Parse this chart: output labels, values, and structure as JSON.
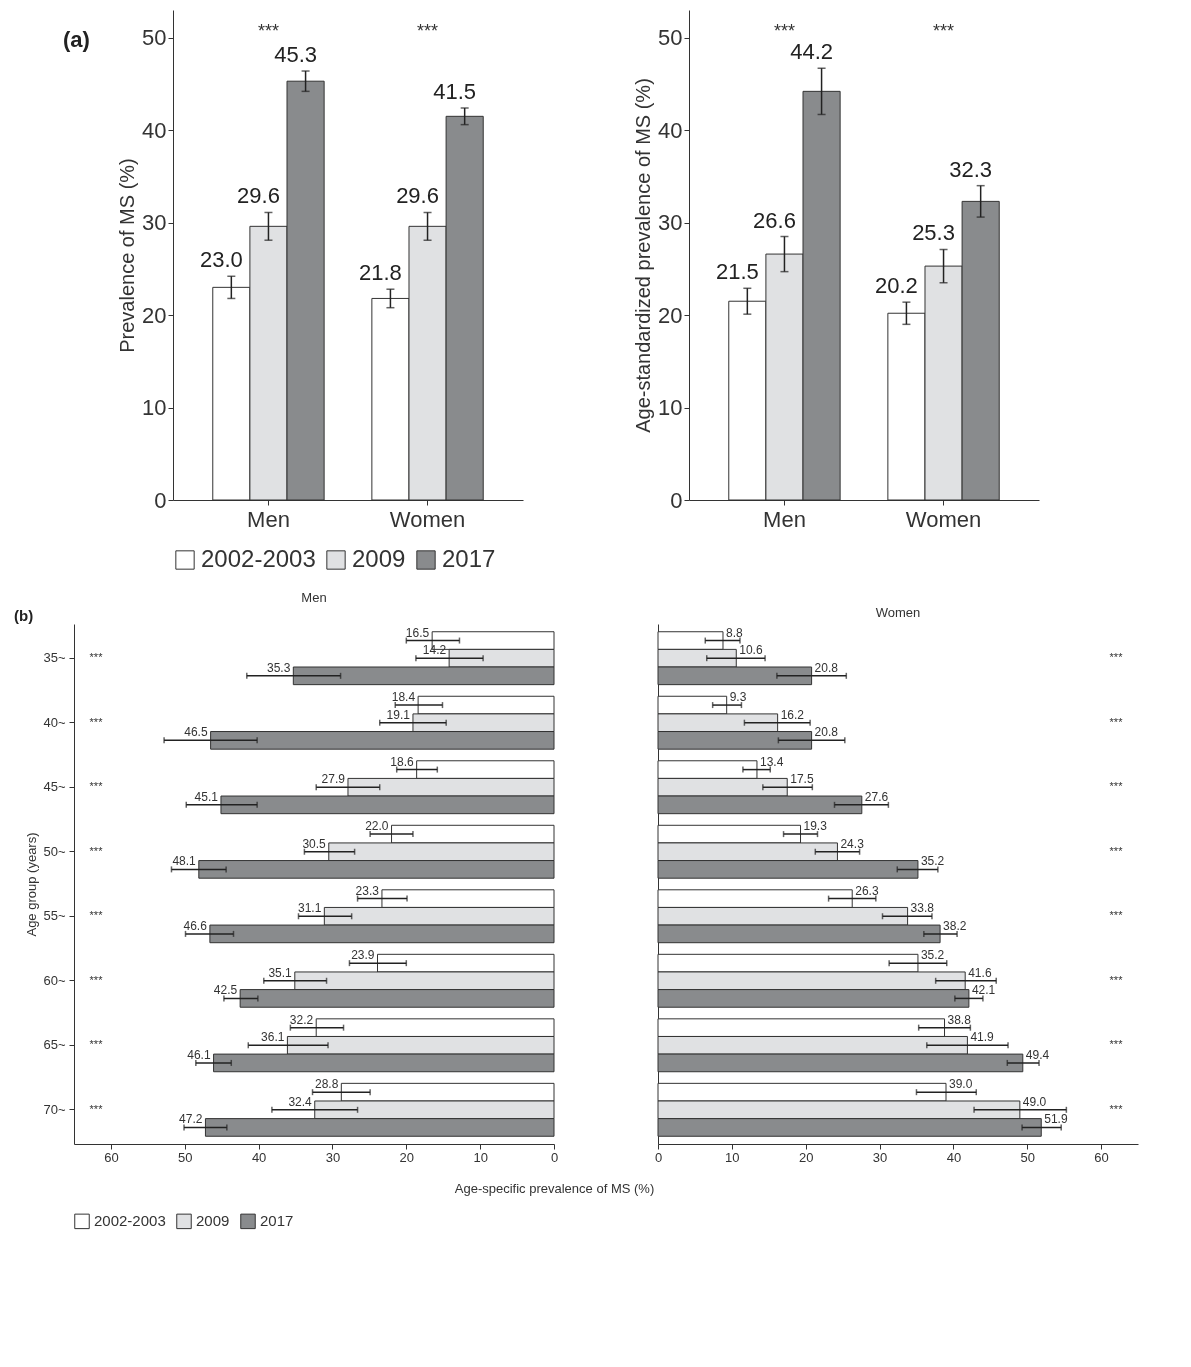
{
  "chart_data": [
    {
      "type": "bar",
      "categories": [
        "Men",
        "Women"
      ],
      "ylabel": "Prevalence of MS (%)",
      "ylim": [
        0,
        53
      ],
      "yticks": [
        0,
        10,
        20,
        30,
        40,
        50
      ],
      "legend": "bottom",
      "annotations": [
        "(a)",
        "***",
        "***"
      ],
      "series": [
        {
          "name": "2002-2003",
          "color": "#ffffff",
          "values": [
            23.0,
            21.8
          ],
          "value_labels": [
            "23.0",
            "21.8"
          ],
          "errors": [
            1.2,
            1.0
          ]
        },
        {
          "name": "2009",
          "color": "#e0e1e3",
          "values": [
            29.6,
            29.6
          ],
          "value_labels": [
            "29.6",
            "29.6"
          ],
          "errors": [
            1.5,
            1.5
          ]
        },
        {
          "name": "2017",
          "color": "#898b8d",
          "values": [
            45.3,
            41.5
          ],
          "value_labels": [
            "45.3",
            "41.5"
          ],
          "errors": [
            1.1,
            0.9
          ]
        }
      ]
    },
    {
      "type": "bar",
      "categories": [
        "Men",
        "Women"
      ],
      "ylabel": "Age-standardized prevalence of MS (%)",
      "ylim": [
        0,
        53
      ],
      "yticks": [
        0,
        10,
        20,
        30,
        40,
        50
      ],
      "legend": "bottom",
      "annotations": [
        "***",
        "***"
      ],
      "series": [
        {
          "name": "2002-2003",
          "color": "#ffffff",
          "values": [
            21.5,
            20.2
          ],
          "value_labels": [
            "21.5",
            "20.2"
          ],
          "errors": [
            1.4,
            1.2
          ]
        },
        {
          "name": "2009",
          "color": "#e0e1e3",
          "values": [
            26.6,
            25.3
          ],
          "value_labels": [
            "26.6",
            "25.3"
          ],
          "errors": [
            1.9,
            1.8
          ]
        },
        {
          "name": "2017",
          "color": "#898b8d",
          "values": [
            44.2,
            32.3
          ],
          "value_labels": [
            "44.2",
            "32.3"
          ],
          "errors": [
            2.5,
            1.7
          ]
        }
      ]
    },
    {
      "type": "bar",
      "orientation": "horizontal",
      "title": "Men",
      "categories": [
        "35~",
        "40~",
        "45~",
        "50~",
        "55~",
        "60~",
        "65~",
        "70~"
      ],
      "ylabel": "Age group (years)",
      "xlabel": "Age-specific prevalence of MS (%)",
      "xlim": [
        65,
        0
      ],
      "xticks": [
        60,
        50,
        40,
        30,
        20,
        10,
        0
      ],
      "legend": "bottom",
      "annotations": [
        "(b)",
        "***",
        "***",
        "***",
        "***",
        "***",
        "***",
        "***",
        "***"
      ],
      "series": [
        {
          "name": "2002-2003",
          "color": "#ffffff",
          "values": [
            16.5,
            18.4,
            18.6,
            22.0,
            23.3,
            23.9,
            32.2,
            28.8
          ],
          "value_labels": [
            "16.5",
            "18.4",
            "18.6",
            "22.0",
            "23.3",
            "23.9",
            "32.2",
            "28.8"
          ],
          "errors": [
            [
              12.8,
              20.0
            ],
            [
              15.1,
              21.5
            ],
            [
              15.8,
              21.3
            ],
            [
              19.1,
              24.9
            ],
            [
              19.9,
              26.6
            ],
            [
              20.0,
              27.7
            ],
            [
              28.5,
              35.7
            ],
            [
              24.9,
              32.7
            ]
          ]
        },
        {
          "name": "2009",
          "color": "#e0e1e3",
          "values": [
            14.2,
            19.1,
            27.9,
            30.5,
            31.1,
            35.1,
            36.1,
            32.4
          ],
          "value_labels": [
            "14.2",
            "19.1",
            "27.9",
            "30.5",
            "31.1",
            "35.1",
            "36.1",
            "32.4"
          ],
          "errors": [
            [
              9.6,
              18.7
            ],
            [
              14.6,
              23.6
            ],
            [
              23.6,
              32.2
            ],
            [
              27.0,
              33.8
            ],
            [
              27.4,
              34.6
            ],
            [
              30.8,
              39.3
            ],
            [
              30.6,
              41.4
            ],
            [
              26.6,
              38.2
            ]
          ]
        },
        {
          "name": "2017",
          "color": "#898b8d",
          "values": [
            35.3,
            46.5,
            45.1,
            48.1,
            46.6,
            42.5,
            46.1,
            47.2
          ],
          "value_labels": [
            "35.3",
            "46.5",
            "45.1",
            "48.1",
            "46.6",
            "42.5",
            "46.1",
            "47.2"
          ],
          "errors": [
            [
              28.9,
              41.6
            ],
            [
              40.2,
              52.8
            ],
            [
              40.2,
              49.8
            ],
            [
              44.4,
              51.8
            ],
            [
              43.4,
              49.9
            ],
            [
              40.1,
              44.7
            ],
            [
              43.7,
              48.5
            ],
            [
              44.3,
              50.1
            ]
          ]
        }
      ]
    },
    {
      "type": "bar",
      "orientation": "horizontal",
      "title": "Women",
      "categories": [
        "35~",
        "40~",
        "45~",
        "50~",
        "55~",
        "60~",
        "65~",
        "70~"
      ],
      "xlim": [
        0,
        65
      ],
      "xticks": [
        0,
        10,
        20,
        30,
        40,
        50,
        60
      ],
      "legend": "bottom",
      "tick_labels": "x",
      "annotations": [
        "***",
        "***",
        "***",
        "***",
        "***",
        "***",
        "***",
        "***"
      ],
      "series": [
        {
          "name": "2002-2003",
          "color": "#ffffff",
          "values": [
            8.8,
            9.3,
            13.4,
            19.3,
            26.3,
            35.2,
            38.8,
            39.0
          ],
          "value_labels": [
            "8.8",
            "9.3",
            "13.4",
            "19.3",
            "26.3",
            "35.2",
            "38.8",
            "39.0"
          ],
          "errors": [
            [
              6.4,
              11.1
            ],
            [
              7.4,
              11.3
            ],
            [
              11.5,
              15.2
            ],
            [
              17.0,
              21.6
            ],
            [
              23.1,
              29.5
            ],
            [
              31.3,
              39.1
            ],
            [
              35.3,
              42.3
            ],
            [
              35.0,
              43.1
            ]
          ]
        },
        {
          "name": "2009",
          "color": "#e0e1e3",
          "values": [
            10.6,
            16.2,
            17.5,
            24.3,
            33.8,
            41.6,
            41.9,
            49.0
          ],
          "value_labels": [
            "10.6",
            "16.2",
            "17.5",
            "24.3",
            "33.8",
            "41.6",
            "41.9",
            "49.0"
          ],
          "errors": [
            [
              6.6,
              14.5
            ],
            [
              11.7,
              20.6
            ],
            [
              14.2,
              20.9
            ],
            [
              21.3,
              27.3
            ],
            [
              30.4,
              37.1
            ],
            [
              37.6,
              45.8
            ],
            [
              36.4,
              47.4
            ],
            [
              42.8,
              55.3
            ]
          ]
        },
        {
          "name": "2017",
          "color": "#898b8d",
          "values": [
            20.8,
            20.8,
            27.6,
            35.2,
            38.2,
            42.1,
            49.4,
            51.9
          ],
          "value_labels": [
            "20.8",
            "20.8",
            "27.6",
            "35.2",
            "38.2",
            "42.1",
            "49.4",
            "51.9"
          ],
          "errors": [
            [
              16.1,
              25.5
            ],
            [
              16.3,
              25.3
            ],
            [
              23.9,
              31.2
            ],
            [
              32.4,
              37.9
            ],
            [
              36.0,
              40.5
            ],
            [
              40.2,
              44.0
            ],
            [
              47.3,
              51.6
            ],
            [
              49.3,
              54.6
            ]
          ]
        }
      ]
    }
  ]
}
